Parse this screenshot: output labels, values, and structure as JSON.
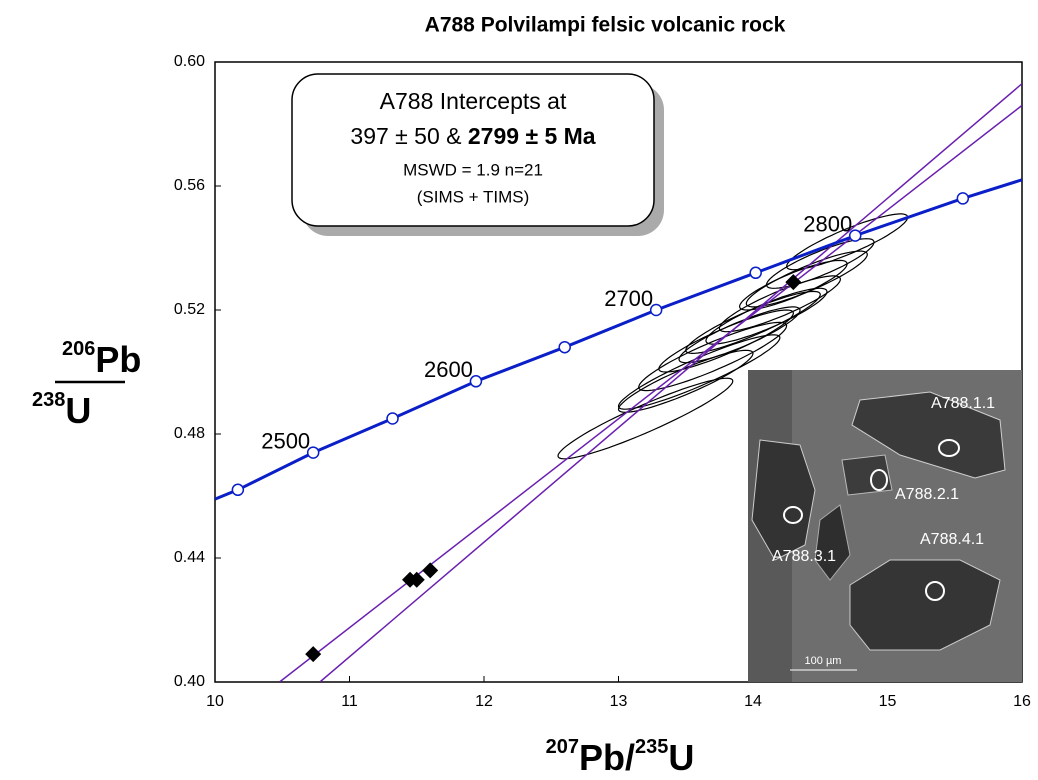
{
  "chart_data": {
    "type": "concordia",
    "title": "A788 Polvilampi felsic volcanic rock",
    "x_label": {
      "sup1": "207",
      "el1": "Pb/",
      "sup2": "235",
      "el2": "U"
    },
    "y_label": {
      "num_sup": "206",
      "num": "Pb",
      "den_sup": "238",
      "den": "U"
    },
    "xlim": [
      10,
      16
    ],
    "xticks": [
      10,
      11,
      12,
      13,
      14,
      15,
      16
    ],
    "ylim": [
      0.4,
      0.6
    ],
    "yticks": [
      {
        "value": 0.4,
        "label": "0.40"
      },
      0.44,
      0.48,
      0.52,
      0.56,
      {
        "value": 0.6,
        "label": "0.60"
      }
    ],
    "concordia": {
      "color": "#0a1fc8",
      "x": [
        10,
        10.17,
        10.73,
        11.32,
        11.94,
        12.6,
        13.28,
        14.02,
        14.76,
        15.56,
        16
      ],
      "y": [
        0.459,
        0.462,
        0.474,
        0.485,
        0.497,
        0.508,
        0.52,
        0.532,
        0.544,
        0.556,
        0.562
      ]
    },
    "age_markers": {
      "x": [
        10.17,
        10.73,
        11.32,
        11.94,
        12.6,
        13.28,
        14.02,
        14.76,
        15.56
      ],
      "y": [
        0.462,
        0.474,
        0.485,
        0.497,
        0.508,
        0.52,
        0.532,
        0.544,
        0.556
      ]
    },
    "age_labels": {
      "labels": [
        2500,
        2600,
        2700,
        2800
      ],
      "x": [
        10.73,
        11.94,
        13.28,
        14.76
      ],
      "y": [
        0.474,
        0.497,
        0.52,
        0.544
      ]
    },
    "discordia": [
      {
        "color": "#6a1fb0",
        "x": [
          10.48,
          16
        ],
        "y": [
          0.4,
          0.586
        ]
      },
      {
        "color": "#6a1fb0",
        "x": [
          10.78,
          16
        ],
        "y": [
          0.4,
          0.593
        ]
      }
    ],
    "tims_points": {
      "x": [
        10.73,
        11.45,
        11.5,
        11.6,
        14.3
      ],
      "y": [
        0.409,
        0.433,
        0.433,
        0.436,
        0.529
      ]
    },
    "ellipses": {
      "x": [
        13.2,
        13.5,
        13.6,
        13.7,
        13.8,
        13.9,
        14.0,
        14.1,
        14.2,
        14.3,
        14.4,
        14.5,
        14.7
      ],
      "y": [
        0.485,
        0.497,
        0.5,
        0.505,
        0.51,
        0.512,
        0.516,
        0.518,
        0.522,
        0.528,
        0.53,
        0.535,
        0.542
      ],
      "dx": [
        0.65,
        0.5,
        0.6,
        0.55,
        0.5,
        0.45,
        0.5,
        0.45,
        0.45,
        0.4,
        0.45,
        0.4,
        0.45
      ],
      "dy": [
        0.013,
        0.01,
        0.012,
        0.011,
        0.01,
        0.009,
        0.01,
        0.009,
        0.009,
        0.008,
        0.009,
        0.008,
        0.009
      ],
      "rho": [
        0.93,
        0.9,
        0.92,
        0.9,
        0.9,
        0.88,
        0.9,
        0.88,
        0.88,
        0.86,
        0.88,
        0.86,
        0.88
      ]
    },
    "annotation": {
      "line1": "A788 Intercepts at",
      "line2a": "397 ± 50 & ",
      "line2b": "2799 ± 5 Ma",
      "line3": "MSWD = 1.9 n=21",
      "line4": "(SIMS + TIMS)"
    },
    "inset": {
      "labels": [
        "A788.1.1",
        "A788.2.1",
        "A788.3.1",
        "A788.4.1"
      ],
      "scale": "100 µm"
    }
  }
}
